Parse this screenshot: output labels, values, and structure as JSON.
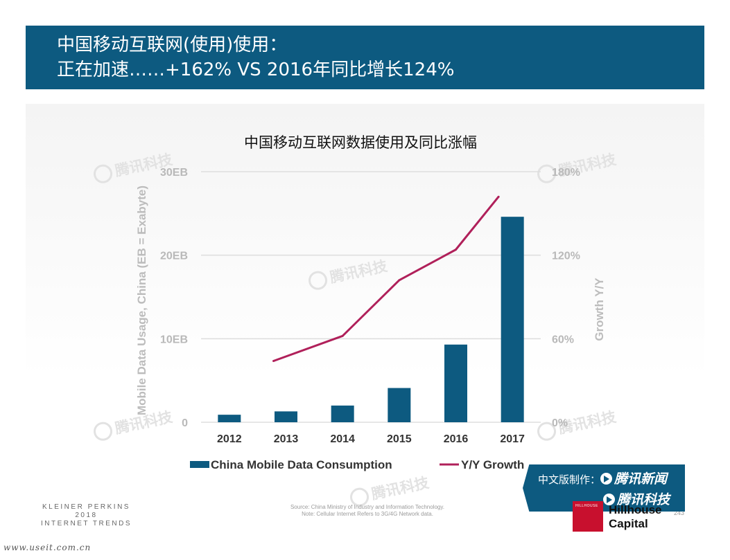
{
  "header": {
    "line1": "中国移动互联网(使用)使用：",
    "line2": "正在加速……+162% VS 2016年同比增长124%"
  },
  "chart_data": {
    "type": "bar",
    "title": "中国移动互联网数据使用及同比涨幅",
    "categories": [
      "2012",
      "2013",
      "2014",
      "2015",
      "2016",
      "2017"
    ],
    "series": [
      {
        "name": "China Mobile Data Consumption",
        "type": "bar",
        "axis": "left",
        "values": [
          0.9,
          1.3,
          2.0,
          4.1,
          9.3,
          24.6
        ],
        "color": "#0d5a80"
      },
      {
        "name": "Y/Y Growth",
        "type": "line",
        "axis": "right",
        "values": [
          null,
          44,
          62,
          102,
          124,
          162
        ],
        "color": "#b0205a"
      }
    ],
    "ylabel": "Mobile Data Usage, China (EB = Exabyte)",
    "y2label": "Growth Y/Y",
    "ylim": [
      0,
      30
    ],
    "y2lim": [
      0,
      180
    ],
    "yticks": [
      "0",
      "10EB",
      "20EB",
      "30EB"
    ],
    "y2ticks": [
      "0%",
      "60%",
      "120%",
      "180%"
    ],
    "grid": true,
    "legend_position": "bottom"
  },
  "watermark_text": "腾讯科技",
  "footer": {
    "brand_line1": "KLEINER PERKINS",
    "brand_line2": "2018",
    "brand_line3": "INTERNET TRENDS",
    "source_line1": "Source: China Ministry of Industry and Information Technology.",
    "source_line2": "Note: Cellular Internet Refers to 3G/4G Network data.",
    "page_number": "243",
    "badge_prefix": "中文版制作：",
    "badge_name1": "腾讯新闻",
    "badge_name2": "腾讯科技",
    "hillhouse_small": "HILLHOUSE",
    "hillhouse_line1": "Hillhouse",
    "hillhouse_line2": "Capital",
    "site_url": "www.useit.com.cn"
  }
}
